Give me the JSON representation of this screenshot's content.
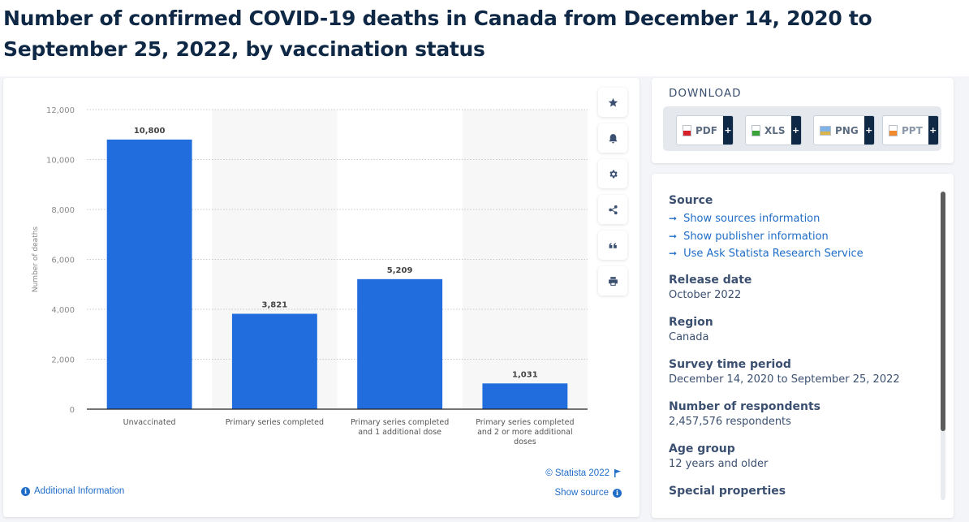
{
  "page": {
    "title": "Number of confirmed COVID-19 deaths in Canada from December 14, 2020 to September 25, 2022, by vaccination status"
  },
  "toolbar": {
    "buttons": [
      {
        "name": "favorite",
        "icon": "star-icon"
      },
      {
        "name": "notification",
        "icon": "bell-icon"
      },
      {
        "name": "settings",
        "icon": "gear-icon"
      },
      {
        "name": "share",
        "icon": "share-icon"
      },
      {
        "name": "cite",
        "icon": "quote-icon"
      },
      {
        "name": "print",
        "icon": "printer-icon"
      }
    ]
  },
  "chart_data": {
    "type": "bar",
    "title": "",
    "xlabel": "",
    "ylabel": "Number of deaths",
    "categories": [
      [
        "Unvaccinated"
      ],
      [
        "Primary series completed"
      ],
      [
        "Primary series completed",
        "and 1 additional dose"
      ],
      [
        "Primary series completed",
        "and 2 or more additional",
        "doses"
      ]
    ],
    "values": [
      10800,
      3821,
      5209,
      1031
    ],
    "value_labels": [
      "10,800",
      "3,821",
      "5,209",
      "1,031"
    ],
    "ylim": [
      0,
      12000
    ],
    "yticks": [
      0,
      2000,
      4000,
      6000,
      8000,
      10000,
      12000
    ],
    "ytick_labels": [
      "0",
      "2,000",
      "4,000",
      "6,000",
      "8,000",
      "10,000",
      "12,000"
    ],
    "grid": true,
    "bar_color": "#226ddd",
    "legend": "none"
  },
  "chart_footer": {
    "copyright": "© Statista 2022",
    "show_source": "Show source",
    "additional_info": "Additional Information"
  },
  "download": {
    "title": "DOWNLOAD",
    "formats": [
      {
        "label": "PDF",
        "color": "#d7202a"
      },
      {
        "label": "XLS",
        "color": "#3aa43a"
      },
      {
        "label": "PNG",
        "color": "#3a7bd5"
      },
      {
        "label": "PPT",
        "color": "#f08a2c"
      }
    ],
    "plus": "+"
  },
  "info": {
    "source_label": "Source",
    "links": [
      "Show sources information",
      "Show publisher information",
      "Use Ask Statista Research Service"
    ],
    "fields": [
      {
        "label": "Release date",
        "value": "October 2022"
      },
      {
        "label": "Region",
        "value": "Canada"
      },
      {
        "label": "Survey time period",
        "value": "December 14, 2020 to September 25, 2022"
      },
      {
        "label": "Number of respondents",
        "value": "2,457,576 respondents"
      },
      {
        "label": "Age group",
        "value": "12 years and older"
      },
      {
        "label": "Special properties",
        "value": ""
      }
    ]
  }
}
